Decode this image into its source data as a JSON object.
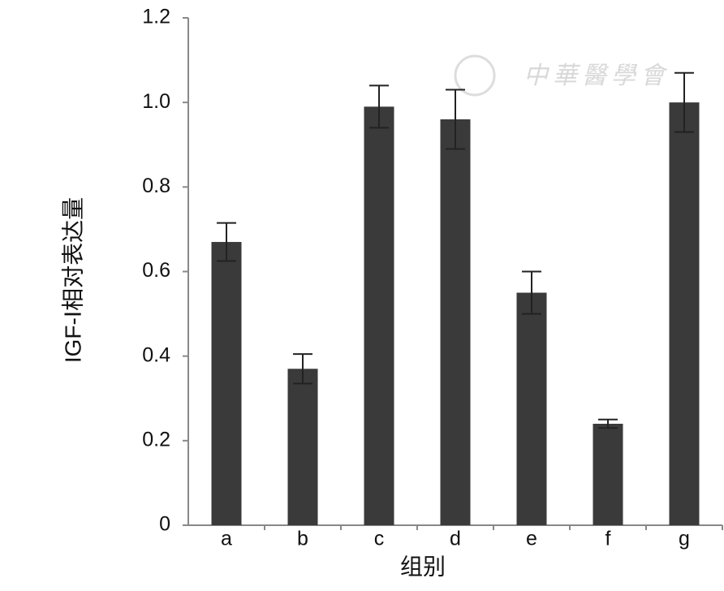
{
  "chart_data": {
    "type": "bar",
    "y_label": "IGF-Ⅰ相对表达量",
    "x_label": "组别",
    "watermark": "中華醫學會",
    "categories": [
      "a",
      "b",
      "c",
      "d",
      "e",
      "f",
      "g"
    ],
    "values": [
      0.67,
      0.37,
      0.99,
      0.96,
      0.55,
      0.24,
      1.0
    ],
    "errors": [
      0.045,
      0.035,
      0.05,
      0.07,
      0.05,
      0.01,
      0.07
    ],
    "color": "#3a3a3a",
    "ylim": [
      0,
      1.2
    ],
    "yticks": [
      0,
      0.2,
      0.4,
      0.6,
      0.8,
      {
        "value": 1,
        "label": "1.0"
      },
      1.2
    ]
  }
}
